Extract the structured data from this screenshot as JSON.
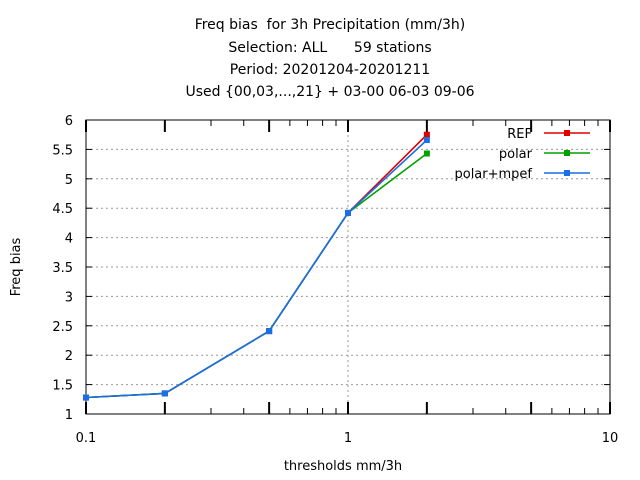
{
  "chart_data": {
    "type": "line",
    "title": "Freq bias  for 3h Precipitation (mm/3h)",
    "subtitle_lines": [
      "Selection: ALL      59 stations",
      "Period: 20201204-20201211",
      "Used {00,03,...,21} + 03-00 06-03 09-06"
    ],
    "xlabel": "thresholds mm/3h",
    "ylabel": "Freq bias",
    "x_scale": "log",
    "xlim": [
      0.1,
      10
    ],
    "ylim": [
      1,
      6
    ],
    "x_ticks": [
      0.1,
      1,
      10
    ],
    "x_tick_labels": [
      "0.1",
      "1",
      "10"
    ],
    "y_ticks": [
      1,
      1.5,
      2,
      2.5,
      3,
      3.5,
      4,
      4.5,
      5,
      5.5,
      6
    ],
    "y_tick_labels": [
      "1",
      "1.5",
      "2",
      "2.5",
      "3",
      "3.5",
      "4",
      "4.5",
      "5",
      "5.5",
      "6"
    ],
    "grid": "dotted at major ticks",
    "legend_position": "top-right",
    "x": [
      0.1,
      0.2,
      0.5,
      1,
      2
    ],
    "series": [
      {
        "name": "REF",
        "color": "#e00000",
        "values": [
          1.28,
          1.35,
          2.41,
          4.42,
          5.75
        ]
      },
      {
        "name": "polar",
        "color": "#00a000",
        "values": [
          1.28,
          1.35,
          2.41,
          4.42,
          5.43
        ]
      },
      {
        "name": "polar+mpef",
        "color": "#1a6fe6",
        "values": [
          1.28,
          1.35,
          2.41,
          4.42,
          5.66
        ]
      }
    ]
  }
}
